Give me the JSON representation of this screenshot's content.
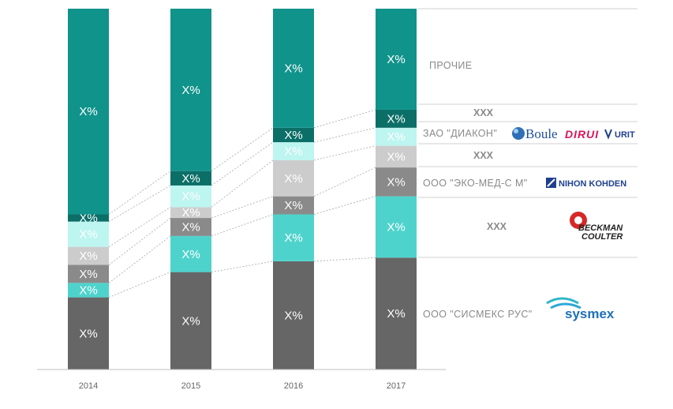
{
  "chart_data": {
    "type": "bar",
    "stacked": true,
    "normalized_percent": true,
    "categories": [
      "2014",
      "2015",
      "2016",
      "2017"
    ],
    "ylim": [
      0,
      100
    ],
    "series": [
      {
        "name": "ООО \"СИСМЕКС РУС\"",
        "color": "#666666",
        "values": [
          20,
          27,
          30,
          31
        ]
      },
      {
        "name": "XXX",
        "color": "#4ed3cc",
        "values": [
          4,
          10,
          13,
          17
        ]
      },
      {
        "name": "ООО \"ЭКО-МЕД-С М\"",
        "color": "#8a8a8a",
        "values": [
          5,
          5,
          5,
          8
        ]
      },
      {
        "name": "XXX",
        "color": "#cccccc",
        "values": [
          5,
          3,
          10,
          6
        ]
      },
      {
        "name": "ЗАО \"ДИАКОН\"",
        "color": "#bdf5f0",
        "values": [
          7,
          6,
          5,
          5
        ]
      },
      {
        "name": "XXX",
        "color": "#0b6f68",
        "values": [
          2,
          4,
          4,
          5
        ]
      },
      {
        "name": "ПРОЧИЕ",
        "color": "#10938b",
        "values": [
          57,
          45,
          33,
          28
        ]
      }
    ],
    "segment_label": "X%"
  },
  "legend": {
    "sysmex": "ООО \"СИСМЕКС РУС\"",
    "xxx_teal": "XXX",
    "ekomed": "ООО \"ЭКО-МЕД-С М\"",
    "xxx_grey": "XXX",
    "diakon": "ЗАО \"ДИАКОН\"",
    "xxx_dark": "XXX",
    "others": "ПРОЧИЕ"
  },
  "logos": {
    "boule": "Boule",
    "dirui": "DIRUI",
    "urit": "URIT",
    "nihon_kohden": "NIHON KOHDEN",
    "beckman_line1": "BECKMAN",
    "beckman_line2": "COULTER",
    "sysmex": "sysmex"
  }
}
